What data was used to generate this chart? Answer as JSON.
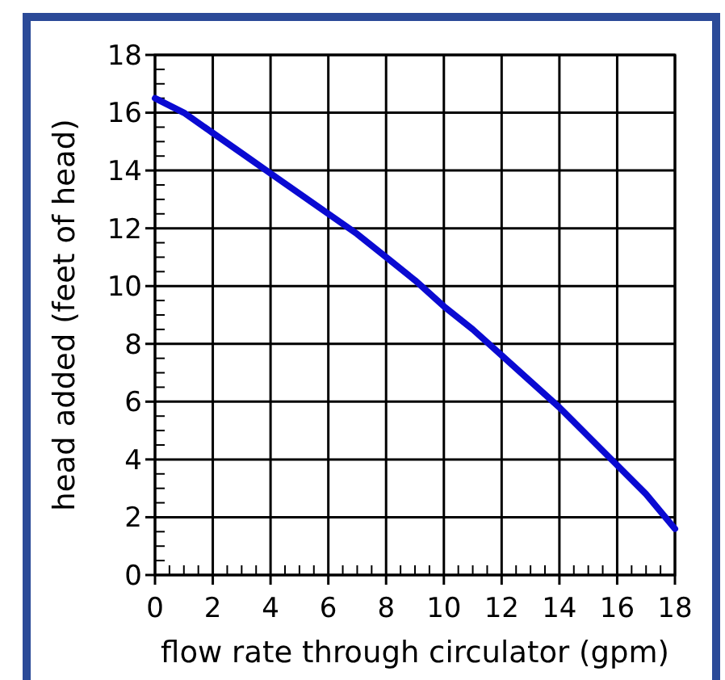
{
  "chart_data": {
    "type": "line",
    "xlabel": "flow rate through circulator (gpm)",
    "ylabel": "head added (feet of head)",
    "x": [
      0,
      1,
      2,
      3,
      4,
      5,
      6,
      7,
      8,
      9,
      10,
      11,
      12,
      13,
      14,
      15,
      16,
      17,
      18
    ],
    "series": [
      {
        "color": "#0a0ad2",
        "values": [
          16.5,
          16.0,
          15.3,
          14.6,
          13.9,
          13.2,
          12.5,
          11.8,
          11.0,
          10.2,
          9.3,
          8.5,
          7.6,
          6.7,
          5.8,
          4.8,
          3.8,
          2.8,
          1.6
        ]
      }
    ],
    "xlim": [
      0,
      18
    ],
    "ylim": [
      0,
      18
    ],
    "xticks": [
      0,
      {
        "value": 0.5,
        "label": null
      },
      {
        "value": 1,
        "label": null
      },
      {
        "value": 1.5,
        "label": null
      },
      2,
      {
        "value": 2.5,
        "label": null
      },
      {
        "value": 3,
        "label": null
      },
      {
        "value": 3.5,
        "label": null
      },
      4,
      {
        "value": 4.5,
        "label": null
      },
      {
        "value": 5,
        "label": null
      },
      {
        "value": 5.5,
        "label": null
      },
      6,
      {
        "value": 6.5,
        "label": null
      },
      {
        "value": 7,
        "label": null
      },
      {
        "value": 7.5,
        "label": null
      },
      8,
      {
        "value": 8.5,
        "label": null
      },
      {
        "value": 9,
        "label": null
      },
      {
        "value": 9.5,
        "label": null
      },
      10,
      {
        "value": 10.5,
        "label": null
      },
      {
        "value": 11,
        "label": null
      },
      {
        "value": 11.5,
        "label": null
      },
      12,
      {
        "value": 12.5,
        "label": null
      },
      {
        "value": 13,
        "label": null
      },
      {
        "value": 13.5,
        "label": null
      },
      14,
      {
        "value": 14.5,
        "label": null
      },
      {
        "value": 15,
        "label": null
      },
      {
        "value": 15.5,
        "label": null
      },
      16,
      {
        "value": 16.5,
        "label": null
      },
      {
        "value": 17,
        "label": null
      },
      {
        "value": 17.5,
        "label": null
      },
      18
    ],
    "yticks": [
      0,
      {
        "value": 0.5,
        "label": null
      },
      {
        "value": 1,
        "label": null
      },
      {
        "value": 1.5,
        "label": null
      },
      2,
      {
        "value": 2.5,
        "label": null
      },
      {
        "value": 3,
        "label": null
      },
      {
        "value": 3.5,
        "label": null
      },
      4,
      {
        "value": 4.5,
        "label": null
      },
      {
        "value": 5,
        "label": null
      },
      {
        "value": 5.5,
        "label": null
      },
      6,
      {
        "value": 6.5,
        "label": null
      },
      {
        "value": 7,
        "label": null
      },
      {
        "value": 7.5,
        "label": null
      },
      8,
      {
        "value": 8.5,
        "label": null
      },
      {
        "value": 9,
        "label": null
      },
      {
        "value": 9.5,
        "label": null
      },
      10,
      {
        "value": 10.5,
        "label": null
      },
      {
        "value": 11,
        "label": null
      },
      {
        "value": 11.5,
        "label": null
      },
      12,
      {
        "value": 12.5,
        "label": null
      },
      {
        "value": 13,
        "label": null
      },
      {
        "value": 13.5,
        "label": null
      },
      14,
      {
        "value": 14.5,
        "label": null
      },
      {
        "value": 15,
        "label": null
      },
      {
        "value": 15.5,
        "label": null
      },
      16,
      {
        "value": 16.5,
        "label": null
      },
      {
        "value": 17,
        "label": null
      },
      {
        "value": 17.5,
        "label": null
      },
      18
    ],
    "grid": true,
    "line_style": "solid",
    "marker": "none"
  }
}
